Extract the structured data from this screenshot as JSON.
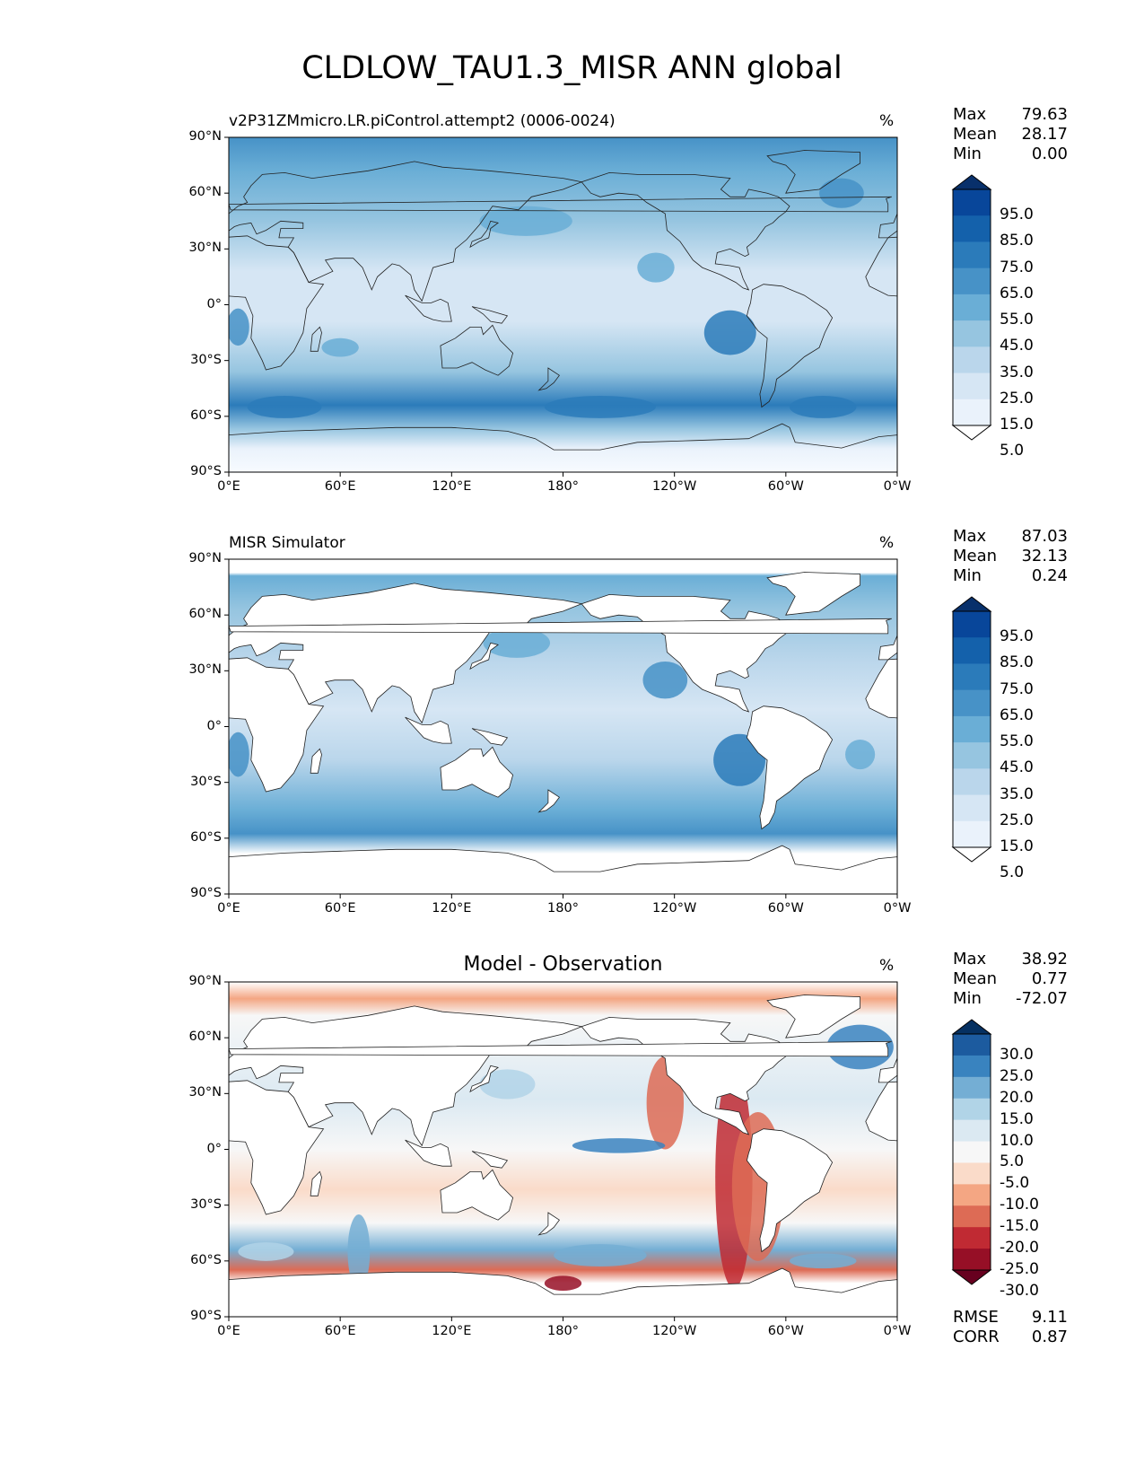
{
  "title": "CLDLOW_TAU1.3_MISR ANN global",
  "lat_ticks": [
    "90°N",
    "60°N",
    "30°N",
    "0°",
    "30°S",
    "60°S",
    "90°S"
  ],
  "lon_ticks": [
    "0°E",
    "60°E",
    "120°E",
    "180°",
    "120°W",
    "60°W",
    "0°W"
  ],
  "panels": [
    {
      "title": "v2P31ZMmicro.LR.piControl.attempt2 (0006-0024)",
      "units": "%",
      "stats": {
        "max_label": "Max",
        "max": "79.63",
        "mean_label": "Mean",
        "mean": "28.17",
        "min_label": "Min",
        "min": "0.00"
      },
      "colorbar": {
        "ticks": [
          "95.0",
          "85.0",
          "75.0",
          "65.0",
          "55.0",
          "45.0",
          "35.0",
          "25.0",
          "15.0",
          "5.0"
        ],
        "colors": [
          "#08306b",
          "#08469a",
          "#1461ab",
          "#2b7bba",
          "#4792c7",
          "#6aaed6",
          "#96c5e0",
          "#bad6eb",
          "#d6e6f4",
          "#eaf2fb",
          "#ffffff"
        ]
      }
    },
    {
      "title": "MISR Simulator",
      "units": "%",
      "stats": {
        "max_label": "Max",
        "max": "87.03",
        "mean_label": "Mean",
        "mean": "32.13",
        "min_label": "Min",
        "min": "0.24"
      },
      "colorbar": {
        "ticks": [
          "95.0",
          "85.0",
          "75.0",
          "65.0",
          "55.0",
          "45.0",
          "35.0",
          "25.0",
          "15.0",
          "5.0"
        ],
        "colors": [
          "#08306b",
          "#08469a",
          "#1461ab",
          "#2b7bba",
          "#4792c7",
          "#6aaed6",
          "#96c5e0",
          "#bad6eb",
          "#d6e6f4",
          "#eaf2fb",
          "#ffffff"
        ]
      }
    },
    {
      "title": "Model - Observation",
      "units": "%",
      "stats": {
        "max_label": "Max",
        "max": "38.92",
        "mean_label": "Mean",
        "mean": "0.77",
        "min_label": "Min",
        "min": "-72.07"
      },
      "extra_stats": {
        "rmse_label": "RMSE",
        "rmse": "9.11",
        "corr_label": "CORR",
        "corr": "0.87"
      },
      "colorbar": {
        "ticks": [
          "30.0",
          "25.0",
          "20.0",
          "15.0",
          "10.0",
          "5.0",
          "-5.0",
          "-10.0",
          "-15.0",
          "-20.0",
          "-25.0",
          "-30.0"
        ],
        "colors": [
          "#053061",
          "#1c5b9f",
          "#3983bf",
          "#74aed4",
          "#b1d4e7",
          "#dbe9f2",
          "#f7f7f7",
          "#fadbc9",
          "#f4a683",
          "#dd6b55",
          "#c02a33",
          "#960f26",
          "#67001f"
        ]
      }
    }
  ]
}
